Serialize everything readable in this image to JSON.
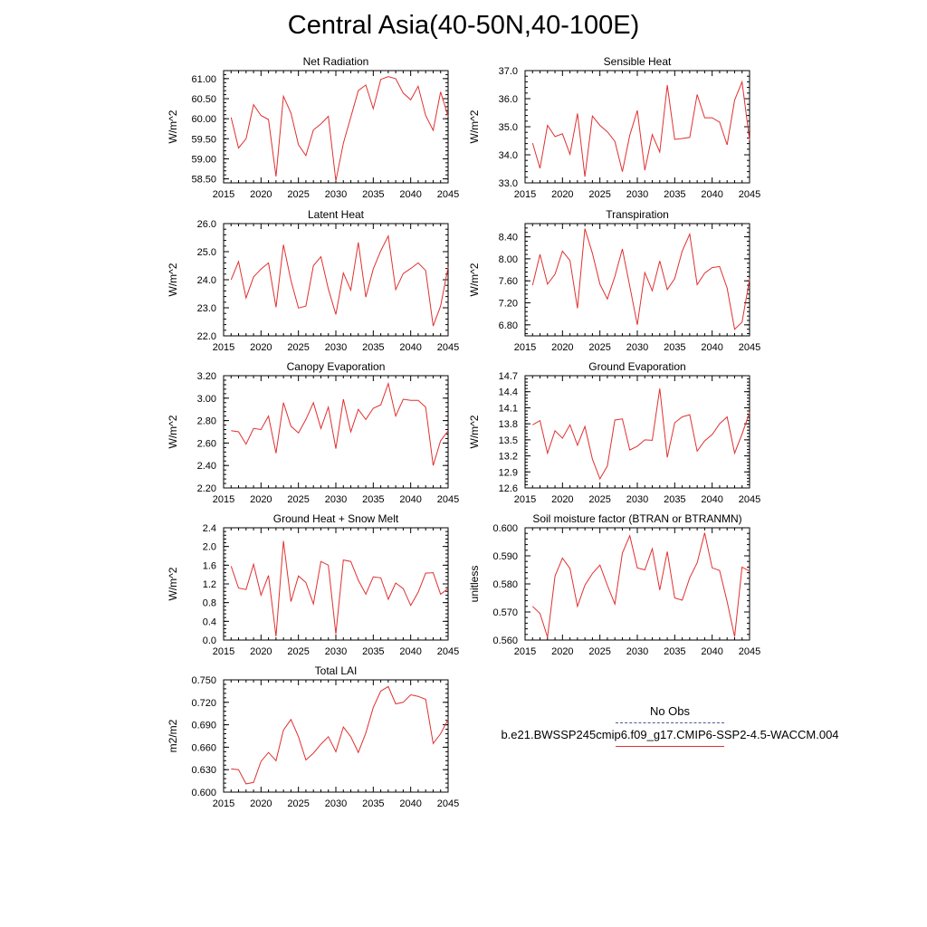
{
  "figure": {
    "title": "Central Asia(40-50N,40-100E)"
  },
  "legend": {
    "obs_label": "No Obs",
    "model_label": "b.e21.BWSSP245cmip6.f09_g17.CMIP6-SSP2-4.5-WACCM.004",
    "obs_color": "#4a5a9a",
    "model_color": "#e03030"
  },
  "chart_data": [
    {
      "type": "line",
      "title": "Net Radiation",
      "ylabel": "W/m^2",
      "xlim": [
        2015,
        2045
      ],
      "ylim": [
        58.4,
        61.2
      ],
      "yticks": [
        58.5,
        59.0,
        59.5,
        60.0,
        60.5,
        61.0
      ],
      "ytick_labels": [
        "58.50",
        "59.00",
        "59.50",
        "60.00",
        "60.50",
        "61.00"
      ],
      "xticks": [
        2015,
        2020,
        2025,
        2030,
        2035,
        2040,
        2045
      ],
      "xtick_labels": [
        "2015",
        "2020",
        "2025",
        "2030",
        "2035",
        "2040",
        "2045"
      ],
      "series": [
        {
          "name": "b.e21.BWSSP245cmip6.f09_g17.CMIP6-SSP2-4.5-WACCM.004",
          "x": [
            2016,
            2017,
            2018,
            2019,
            2020,
            2021,
            2022,
            2023,
            2024,
            2025,
            2026,
            2027,
            2028,
            2029,
            2030,
            2031,
            2032,
            2033,
            2034,
            2035,
            2036,
            2037,
            2038,
            2039,
            2040,
            2041,
            2042,
            2043,
            2044,
            2045
          ],
          "values": [
            60.03,
            59.27,
            59.5,
            60.35,
            60.08,
            59.98,
            58.56,
            60.56,
            60.14,
            59.35,
            59.08,
            59.72,
            59.87,
            60.06,
            58.45,
            59.39,
            60.04,
            60.7,
            60.84,
            60.25,
            60.98,
            61.05,
            61.0,
            60.64,
            60.47,
            60.81,
            60.08,
            59.71,
            60.67,
            60.06
          ]
        }
      ]
    },
    {
      "type": "line",
      "title": "Sensible Heat",
      "ylabel": "W/m^2",
      "xlim": [
        2015,
        2045
      ],
      "ylim": [
        33.0,
        37.0
      ],
      "yticks": [
        33.0,
        34.0,
        35.0,
        36.0,
        37.0
      ],
      "ytick_labels": [
        "33.0",
        "34.0",
        "35.0",
        "36.0",
        "37.0"
      ],
      "xticks": [
        2015,
        2020,
        2025,
        2030,
        2035,
        2040,
        2045
      ],
      "xtick_labels": [
        "2015",
        "2020",
        "2025",
        "2030",
        "2035",
        "2040",
        "2045"
      ],
      "series": [
        {
          "name": "b.e21.BWSSP245cmip6.f09_g17.CMIP6-SSP2-4.5-WACCM.004",
          "x": [
            2016,
            2017,
            2018,
            2019,
            2020,
            2021,
            2022,
            2023,
            2024,
            2025,
            2026,
            2027,
            2028,
            2029,
            2030,
            2031,
            2032,
            2033,
            2034,
            2035,
            2036,
            2037,
            2038,
            2039,
            2040,
            2041,
            2042,
            2043,
            2044,
            2045
          ],
          "values": [
            34.42,
            33.52,
            35.05,
            34.65,
            34.75,
            34.02,
            35.47,
            33.22,
            35.38,
            35.05,
            34.82,
            34.48,
            33.4,
            34.7,
            35.58,
            33.45,
            34.72,
            34.1,
            36.48,
            34.55,
            34.58,
            34.62,
            36.15,
            35.32,
            35.32,
            35.16,
            34.35,
            35.95,
            36.6,
            34.52
          ]
        }
      ]
    },
    {
      "type": "line",
      "title": "Latent Heat",
      "ylabel": "W/m^2",
      "xlim": [
        2015,
        2045
      ],
      "ylim": [
        22.0,
        26.0
      ],
      "yticks": [
        22.0,
        23.0,
        24.0,
        25.0,
        26.0
      ],
      "ytick_labels": [
        "22.0",
        "23.0",
        "24.0",
        "25.0",
        "26.0"
      ],
      "xticks": [
        2015,
        2020,
        2025,
        2030,
        2035,
        2040,
        2045
      ],
      "xtick_labels": [
        "2015",
        "2020",
        "2025",
        "2030",
        "2035",
        "2040",
        "2045"
      ],
      "series": [
        {
          "name": "b.e21.BWSSP245cmip6.f09_g17.CMIP6-SSP2-4.5-WACCM.004",
          "x": [
            2016,
            2017,
            2018,
            2019,
            2020,
            2021,
            2022,
            2023,
            2024,
            2025,
            2026,
            2027,
            2028,
            2029,
            2030,
            2031,
            2032,
            2033,
            2034,
            2035,
            2036,
            2037,
            2038,
            2039,
            2040,
            2041,
            2042,
            2043,
            2044,
            2045
          ],
          "values": [
            24.0,
            24.65,
            23.35,
            24.1,
            24.38,
            24.6,
            23.02,
            25.25,
            23.97,
            22.99,
            23.06,
            24.5,
            24.82,
            23.67,
            22.76,
            24.24,
            23.63,
            25.33,
            23.38,
            24.38,
            25.03,
            25.56,
            23.65,
            24.22,
            24.4,
            24.6,
            24.33,
            22.35,
            23.06,
            24.45
          ]
        }
      ]
    },
    {
      "type": "line",
      "title": "Transpiration",
      "ylabel": "W/m^2",
      "xlim": [
        2015,
        2045
      ],
      "ylim": [
        6.6,
        8.64
      ],
      "yticks": [
        6.8,
        7.2,
        7.6,
        8.0,
        8.4
      ],
      "ytick_labels": [
        "6.80",
        "7.20",
        "7.60",
        "8.00",
        "8.40"
      ],
      "xticks": [
        2015,
        2020,
        2025,
        2030,
        2035,
        2040,
        2045
      ],
      "xtick_labels": [
        "2015",
        "2020",
        "2025",
        "2030",
        "2035",
        "2040",
        "2045"
      ],
      "series": [
        {
          "name": "b.e21.BWSSP245cmip6.f09_g17.CMIP6-SSP2-4.5-WACCM.004",
          "x": [
            2016,
            2017,
            2018,
            2019,
            2020,
            2021,
            2022,
            2023,
            2024,
            2025,
            2026,
            2027,
            2028,
            2029,
            2030,
            2031,
            2032,
            2033,
            2034,
            2035,
            2036,
            2037,
            2038,
            2039,
            2040,
            2041,
            2042,
            2043,
            2044,
            2045
          ],
          "values": [
            7.52,
            8.08,
            7.54,
            7.72,
            8.14,
            7.97,
            7.1,
            8.55,
            8.1,
            7.54,
            7.27,
            7.68,
            8.18,
            7.5,
            6.8,
            7.75,
            7.42,
            7.96,
            7.44,
            7.64,
            8.14,
            8.45,
            7.53,
            7.74,
            7.84,
            7.86,
            7.47,
            6.72,
            6.85,
            7.63
          ]
        }
      ]
    },
    {
      "type": "line",
      "title": "Canopy Evaporation",
      "ylabel": "W/m^2",
      "xlim": [
        2015,
        2045
      ],
      "ylim": [
        2.2,
        3.2
      ],
      "yticks": [
        2.2,
        2.4,
        2.6,
        2.8,
        3.0,
        3.2
      ],
      "ytick_labels": [
        "2.20",
        "2.40",
        "2.60",
        "2.80",
        "3.00",
        "3.20"
      ],
      "xticks": [
        2015,
        2020,
        2025,
        2030,
        2035,
        2040,
        2045
      ],
      "xtick_labels": [
        "2015",
        "2020",
        "2025",
        "2030",
        "2035",
        "2040",
        "2045"
      ],
      "series": [
        {
          "name": "b.e21.BWSSP245cmip6.f09_g17.CMIP6-SSP2-4.5-WACCM.004",
          "x": [
            2016,
            2017,
            2018,
            2019,
            2020,
            2021,
            2022,
            2023,
            2024,
            2025,
            2026,
            2027,
            2028,
            2029,
            2030,
            2031,
            2032,
            2033,
            2034,
            2035,
            2036,
            2037,
            2038,
            2039,
            2040,
            2041,
            2042,
            2043,
            2044,
            2045
          ],
          "values": [
            2.71,
            2.7,
            2.59,
            2.73,
            2.72,
            2.84,
            2.51,
            2.96,
            2.75,
            2.69,
            2.81,
            2.96,
            2.73,
            2.92,
            2.55,
            2.99,
            2.7,
            2.9,
            2.81,
            2.91,
            2.94,
            3.13,
            2.84,
            2.99,
            2.98,
            2.98,
            2.92,
            2.4,
            2.62,
            2.71
          ]
        }
      ]
    },
    {
      "type": "line",
      "title": "Ground Evaporation",
      "ylabel": "W/m^2",
      "xlim": [
        2015,
        2045
      ],
      "ylim": [
        12.6,
        14.7
      ],
      "yticks": [
        12.6,
        12.9,
        13.2,
        13.5,
        13.8,
        14.1,
        14.4,
        14.7
      ],
      "ytick_labels": [
        "12.6",
        "12.9",
        "13.2",
        "13.5",
        "13.8",
        "14.1",
        "14.4",
        "14.7"
      ],
      "xticks": [
        2015,
        2020,
        2025,
        2030,
        2035,
        2040,
        2045
      ],
      "xtick_labels": [
        "2015",
        "2020",
        "2025",
        "2030",
        "2035",
        "2040",
        "2045"
      ],
      "series": [
        {
          "name": "b.e21.BWSSP245cmip6.f09_g17.CMIP6-SSP2-4.5-WACCM.004",
          "x": [
            2016,
            2017,
            2018,
            2019,
            2020,
            2021,
            2022,
            2023,
            2024,
            2025,
            2026,
            2027,
            2028,
            2029,
            2030,
            2031,
            2032,
            2033,
            2034,
            2035,
            2036,
            2037,
            2038,
            2039,
            2040,
            2041,
            2042,
            2043,
            2044,
            2045
          ],
          "values": [
            13.78,
            13.86,
            13.25,
            13.67,
            13.53,
            13.78,
            13.4,
            13.75,
            13.14,
            12.77,
            13.01,
            13.87,
            13.89,
            13.31,
            13.38,
            13.5,
            13.49,
            14.46,
            13.17,
            13.82,
            13.93,
            13.97,
            13.29,
            13.48,
            13.6,
            13.8,
            13.93,
            13.25,
            13.61,
            14.01
          ]
        }
      ]
    },
    {
      "type": "line",
      "title": "Ground Heat + Snow Melt",
      "ylabel": "W/m^2",
      "xlim": [
        2015,
        2045
      ],
      "ylim": [
        0.0,
        2.4
      ],
      "yticks": [
        0.0,
        0.4,
        0.8,
        1.2,
        1.6,
        2.0,
        2.4
      ],
      "ytick_labels": [
        "0.0",
        "0.4",
        "0.8",
        "1.2",
        "1.6",
        "2.0",
        "2.4"
      ],
      "xticks": [
        2015,
        2020,
        2025,
        2030,
        2035,
        2040,
        2045
      ],
      "xtick_labels": [
        "2015",
        "2020",
        "2025",
        "2030",
        "2035",
        "2040",
        "2045"
      ],
      "series": [
        {
          "name": "b.e21.BWSSP245cmip6.f09_g17.CMIP6-SSP2-4.5-WACCM.004",
          "x": [
            2016,
            2017,
            2018,
            2019,
            2020,
            2021,
            2022,
            2023,
            2024,
            2025,
            2026,
            2027,
            2028,
            2029,
            2030,
            2031,
            2032,
            2033,
            2034,
            2035,
            2036,
            2037,
            2038,
            2039,
            2040,
            2041,
            2042,
            2043,
            2044,
            2045
          ],
          "values": [
            1.58,
            1.11,
            1.08,
            1.62,
            0.96,
            1.38,
            0.08,
            2.12,
            0.82,
            1.37,
            1.23,
            0.77,
            1.68,
            1.6,
            0.13,
            1.71,
            1.68,
            1.28,
            0.98,
            1.35,
            1.33,
            0.87,
            1.22,
            1.1,
            0.74,
            1.02,
            1.43,
            1.44,
            0.98,
            1.1
          ]
        }
      ]
    },
    {
      "type": "line",
      "title": "Soil moisture factor (BTRAN or BTRANMN)",
      "ylabel": "unitless",
      "xlim": [
        2015,
        2045
      ],
      "ylim": [
        0.56,
        0.6
      ],
      "yticks": [
        0.56,
        0.57,
        0.58,
        0.59,
        0.6
      ],
      "ytick_labels": [
        "0.560",
        "0.570",
        "0.580",
        "0.590",
        "0.600"
      ],
      "xticks": [
        2015,
        2020,
        2025,
        2030,
        2035,
        2040,
        2045
      ],
      "xtick_labels": [
        "2015",
        "2020",
        "2025",
        "2030",
        "2035",
        "2040",
        "2045"
      ],
      "series": [
        {
          "name": "b.e21.BWSSP245cmip6.f09_g17.CMIP6-SSP2-4.5-WACCM.004",
          "x": [
            2016,
            2017,
            2018,
            2019,
            2020,
            2021,
            2022,
            2023,
            2024,
            2025,
            2026,
            2027,
            2028,
            2029,
            2030,
            2031,
            2032,
            2033,
            2034,
            2035,
            2036,
            2037,
            2038,
            2039,
            2040,
            2041,
            2042,
            2043,
            2044,
            2045
          ],
          "values": [
            0.572,
            0.5695,
            0.561,
            0.5828,
            0.5892,
            0.5855,
            0.572,
            0.5795,
            0.5837,
            0.5867,
            0.5795,
            0.5728,
            0.591,
            0.5972,
            0.5857,
            0.585,
            0.5925,
            0.5778,
            0.5915,
            0.575,
            0.5742,
            0.5822,
            0.5875,
            0.5982,
            0.5857,
            0.5848,
            0.5737,
            0.5612,
            0.586,
            0.5845
          ]
        }
      ]
    },
    {
      "type": "line",
      "title": "Total LAI",
      "ylabel": "m2/m2",
      "xlim": [
        2015,
        2045
      ],
      "ylim": [
        0.6,
        0.75
      ],
      "yticks": [
        0.6,
        0.63,
        0.66,
        0.69,
        0.72,
        0.75
      ],
      "ytick_labels": [
        "0.600",
        "0.630",
        "0.660",
        "0.690",
        "0.720",
        "0.750"
      ],
      "xticks": [
        2015,
        2020,
        2025,
        2030,
        2035,
        2040,
        2045
      ],
      "xtick_labels": [
        "2015",
        "2020",
        "2025",
        "2030",
        "2035",
        "2040",
        "2045"
      ],
      "series": [
        {
          "name": "b.e21.BWSSP245cmip6.f09_g17.CMIP6-SSP2-4.5-WACCM.004",
          "x": [
            2016,
            2017,
            2018,
            2019,
            2020,
            2021,
            2022,
            2023,
            2024,
            2025,
            2026,
            2027,
            2028,
            2029,
            2030,
            2031,
            2032,
            2033,
            2034,
            2035,
            2036,
            2037,
            2038,
            2039,
            2040,
            2041,
            2042,
            2043,
            2044,
            2045
          ],
          "values": [
            0.631,
            0.63,
            0.611,
            0.613,
            0.641,
            0.653,
            0.642,
            0.683,
            0.697,
            0.674,
            0.643,
            0.652,
            0.664,
            0.674,
            0.654,
            0.687,
            0.674,
            0.653,
            0.679,
            0.713,
            0.735,
            0.741,
            0.718,
            0.72,
            0.73,
            0.728,
            0.724,
            0.665,
            0.678,
            0.697
          ]
        }
      ]
    }
  ]
}
